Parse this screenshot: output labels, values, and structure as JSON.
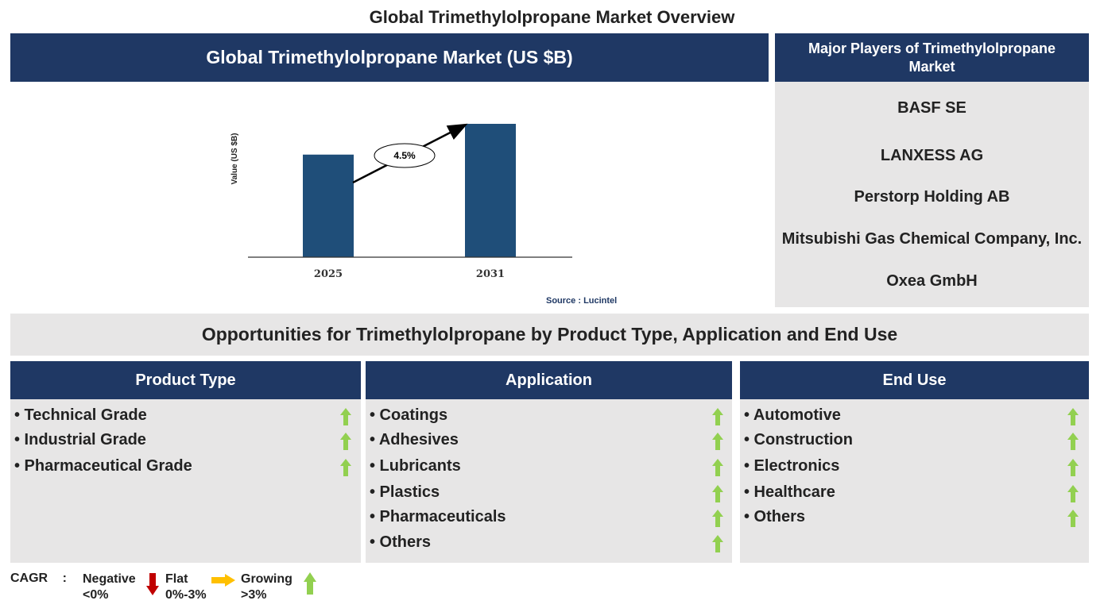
{
  "page_title": "Global Trimethylolpropane Market Overview",
  "market_header": "Global Trimethylolpropane Market (US $B)",
  "players": {
    "header": "Major Players of Trimethylolpropane Market",
    "items": [
      "BASF SE",
      "LANXESS AG",
      "Perstorp Holding AB",
      "Mitsubishi Gas Chemical Company, Inc.",
      "Oxea GmbH"
    ]
  },
  "chart_data": {
    "type": "bar",
    "categories": [
      "2025",
      "2031"
    ],
    "values": [
      1.0,
      1.3
    ],
    "ylabel": "Value (US $B)",
    "xlabel": "",
    "bar_color": "#1f4e79",
    "annotation": "4.5%",
    "source": "Source : Lucintel"
  },
  "opportunities_header": "Opportunities for Trimethylolpropane by Product Type, Application and End Use",
  "columns": [
    {
      "title": "Product Type",
      "items": [
        "Technical Grade",
        "Industrial Grade",
        "Pharmaceutical Grade"
      ]
    },
    {
      "title": "Application",
      "items": [
        "Coatings",
        "Adhesives",
        "Lubricants",
        "Plastics",
        "Pharmaceuticals",
        "Others"
      ]
    },
    {
      "title": "End Use",
      "items": [
        "Automotive",
        "Construction",
        "Electronics",
        "Healthcare",
        "Others"
      ]
    }
  ],
  "legend": {
    "cagr_label": "CAGR",
    "colon": ":",
    "negative": "Negative",
    "negative_range": "<0%",
    "flat": "Flat",
    "flat_range": "0%-3%",
    "growing": "Growing",
    "growing_range": ">3%"
  },
  "colors": {
    "navy": "#1f3864",
    "grey": "#e7e6e6",
    "growth_arrow": "#92d050",
    "negative_arrow": "#c00000",
    "flat_arrow": "#ffc000"
  }
}
